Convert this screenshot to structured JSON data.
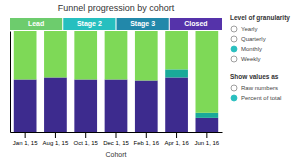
{
  "chart_data": {
    "type": "bar",
    "stacked": true,
    "title": "Funnel progression by cohort",
    "x_label": "Cohort",
    "categories": [
      "Jan 1, 15",
      "Aug 1, 15",
      "Oct 1, 15",
      "Dec 1, 15",
      "Feb 1, 16",
      "Apr 1, 16",
      "Jun 1, 16"
    ],
    "series": [
      {
        "color": "#3d2b8e",
        "values": [
          0.52,
          0.54,
          0.52,
          0.52,
          0.51,
          0.54,
          0.14
        ]
      },
      {
        "color": "#1aaa99",
        "values": [
          0.0,
          0.0,
          0.0,
          0.0,
          0.0,
          0.08,
          0.05
        ]
      },
      {
        "color": "#7ed957",
        "values": [
          0.48,
          0.46,
          0.48,
          0.48,
          0.49,
          0.38,
          0.81
        ]
      }
    ],
    "ylim": [
      0,
      1
    ],
    "yticks": [],
    "tick_labels": "x",
    "grid": false,
    "annotations": [
      {
        "text": "Lead",
        "color": "#6dcc6d"
      },
      {
        "text": "Stage 2",
        "color": "#26bfbf"
      },
      {
        "text": "Stage 3",
        "color": "#2288aa"
      },
      {
        "text": "Closed",
        "color": "#5533aa"
      }
    ],
    "controls": [
      {
        "title": "Level of granularity",
        "options": [
          "Yearly",
          "Quarterly",
          "Monthly",
          "Weekly"
        ],
        "selected": "Monthly"
      },
      {
        "title": "Show values as",
        "options": [
          "Raw numbers",
          "Percent of total"
        ],
        "selected": "Percent of total"
      }
    ]
  }
}
